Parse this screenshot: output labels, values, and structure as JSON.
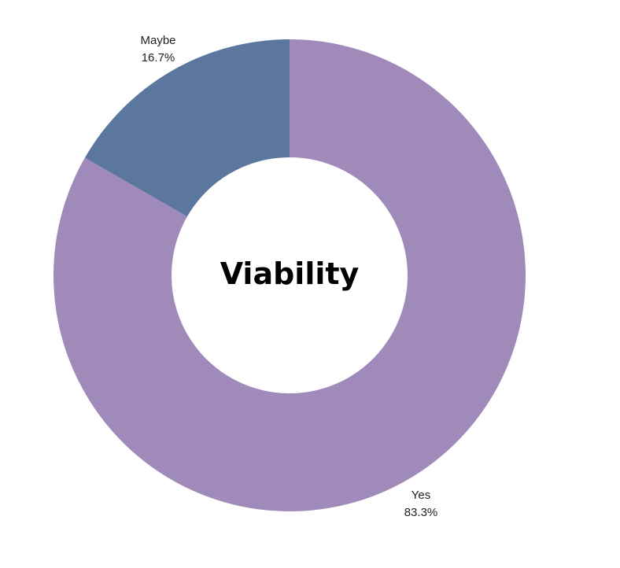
{
  "chart_data": {
    "type": "pie",
    "style": "donut",
    "title": "Viability",
    "slices": [
      {
        "label": "Yes",
        "value": 83.3,
        "display": "83.3%",
        "color": "#a08aba"
      },
      {
        "label": "Maybe",
        "value": 16.7,
        "display": "16.7%",
        "color": "#5b779e"
      }
    ],
    "legend": "none",
    "labels_outside": true
  }
}
